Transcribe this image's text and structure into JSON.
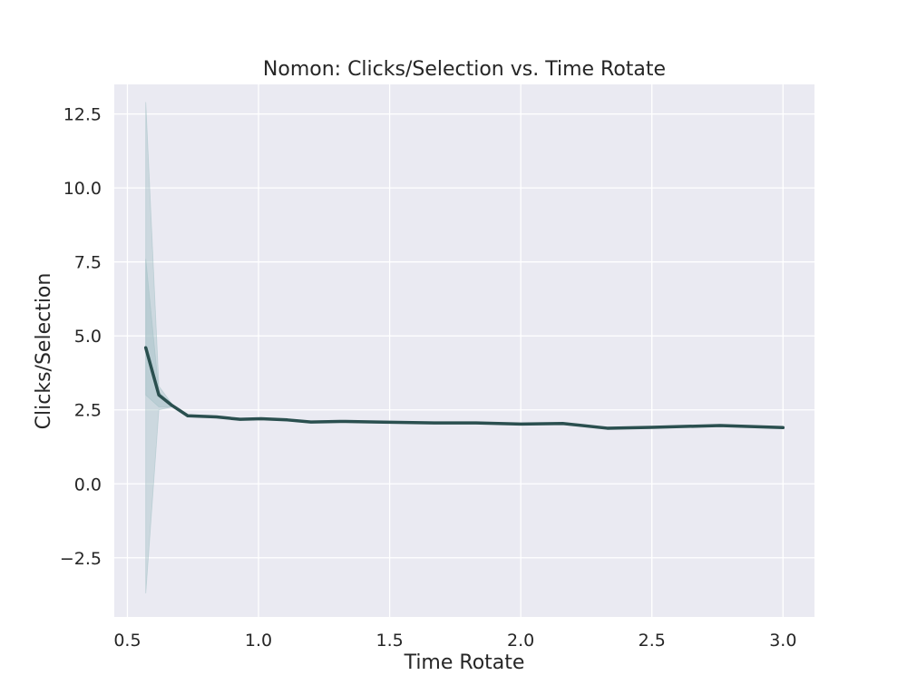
{
  "chart_data": {
    "type": "line",
    "title": "Nomon: Clicks/Selection vs. Time Rotate",
    "xlabel": "Time Rotate",
    "ylabel": "Clicks/Selection",
    "xlim": [
      0.45,
      3.12
    ],
    "ylim": [
      -4.5,
      13.5
    ],
    "xticks": [
      0.5,
      1.0,
      1.5,
      2.0,
      2.5,
      3.0
    ],
    "xtick_labels": [
      "0.5",
      "1.0",
      "1.5",
      "2.0",
      "2.5",
      "3.0"
    ],
    "yticks": [
      -2.5,
      0.0,
      2.5,
      5.0,
      7.5,
      10.0,
      12.5
    ],
    "ytick_labels": [
      "−2.5",
      "0.0",
      "2.5",
      "5.0",
      "7.5",
      "10.0",
      "12.5"
    ],
    "grid": true,
    "background_color": "#eaeaf2",
    "grid_color": "#ffffff",
    "line_color": "#2a4f4f",
    "band_color": "#9fbfc4",
    "series": [
      {
        "x": [
          0.57,
          0.62,
          0.67,
          0.73,
          0.84,
          0.93,
          1.01,
          1.11,
          1.2,
          1.31,
          1.45,
          1.67,
          1.83,
          2.0,
          2.16,
          2.33,
          2.5,
          2.76,
          3.0
        ],
        "y": [
          4.6,
          3.0,
          2.65,
          2.3,
          2.26,
          2.18,
          2.2,
          2.16,
          2.09,
          2.11,
          2.09,
          2.06,
          2.06,
          2.02,
          2.04,
          1.88,
          1.91,
          1.97,
          1.9
        ]
      }
    ],
    "bands": [
      {
        "x": [
          0.57,
          0.62,
          0.67
        ],
        "lower": [
          -3.7,
          2.5,
          2.6
        ],
        "upper": [
          12.9,
          3.3,
          2.7
        ]
      },
      {
        "x": [
          0.57,
          0.62,
          0.67
        ],
        "lower": [
          3.0,
          2.6,
          2.6
        ],
        "upper": [
          7.6,
          3.1,
          2.7
        ]
      }
    ]
  }
}
